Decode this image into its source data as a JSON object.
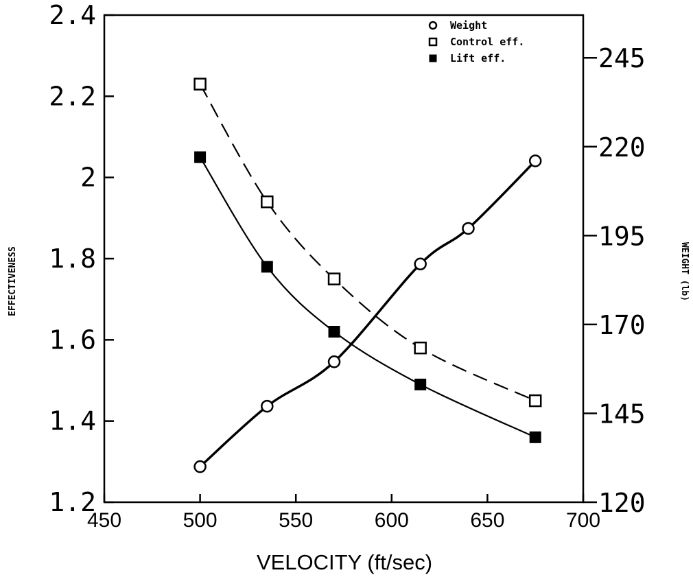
{
  "chart_data": {
    "type": "line",
    "title": "",
    "xlabel": "VELOCITY (ft/sec)",
    "ylabel": "EFFECTIVENESS",
    "y2label": "WEIGHT (lb)",
    "xlim": [
      450,
      700
    ],
    "ylim": [
      1.2,
      2.4
    ],
    "y2lim": [
      120,
      257
    ],
    "x_ticks": [
      "450",
      "500",
      "550",
      "600",
      "650",
      "700"
    ],
    "y_ticks": [
      "1.2",
      "1.4",
      "1.6",
      "1.8",
      "2",
      "2.2",
      "2.4"
    ],
    "y2_ticks": [
      "120",
      "145",
      "170",
      "195",
      "220",
      "245"
    ],
    "grid": false,
    "legend_position": "top-right",
    "series": [
      {
        "name": "Weight",
        "axis": "right",
        "marker": "circle-open",
        "line": "solid-thick",
        "x": [
          500,
          535,
          570,
          615,
          640,
          675
        ],
        "y": [
          130,
          147,
          159.5,
          187,
          197,
          216
        ]
      },
      {
        "name": "Control eff.",
        "axis": "left",
        "marker": "square-open",
        "line": "dashed",
        "x": [
          500,
          535,
          570,
          615,
          675
        ],
        "y": [
          2.23,
          1.94,
          1.75,
          1.58,
          1.45
        ]
      },
      {
        "name": "Lift eff.",
        "axis": "left",
        "marker": "square-filled",
        "line": "solid",
        "x": [
          500,
          535,
          570,
          615,
          675
        ],
        "y": [
          2.05,
          1.78,
          1.62,
          1.49,
          1.36
        ]
      }
    ]
  }
}
